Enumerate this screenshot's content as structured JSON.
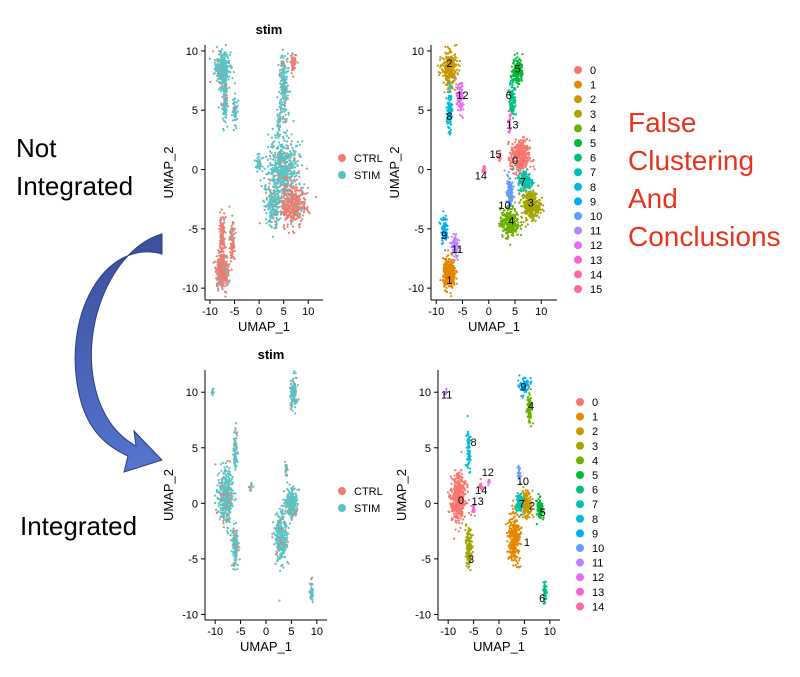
{
  "labels": {
    "not_integrated": [
      "Not",
      "Integrated"
    ],
    "integrated": "Integrated",
    "false_clustering": [
      "False",
      "Clustering",
      "And",
      "Conclusions"
    ]
  },
  "colors": {
    "CTRL": "#f07b71",
    "STIM": "#56c4c5",
    "label_red": "#e8341c",
    "arrow_start": "#3a4f9c",
    "arrow_end": "#5575cf",
    "clusters": [
      "#f8766d",
      "#e58700",
      "#c99800",
      "#a3a500",
      "#6bb100",
      "#00ba38",
      "#00bf7d",
      "#00c0af",
      "#00bcd8",
      "#00b0f6",
      "#619cff",
      "#b983ff",
      "#e76bf3",
      "#fd61d1",
      "#ff67a4",
      "#ff6c91"
    ]
  },
  "icons": {
    "arrow": "curved-arrow-icon"
  },
  "chart_data": [
    {
      "type": "scatter",
      "title": "stim",
      "xlabel": "UMAP_1",
      "ylabel": "UMAP_2",
      "xlim": [
        -11,
        13
      ],
      "ylim": [
        -11,
        10.5
      ],
      "xticks": [
        -10,
        -5,
        0,
        5,
        10
      ],
      "yticks": [
        -10,
        -5,
        0,
        5,
        10
      ],
      "color_by": "group",
      "legend": {
        "position": "right",
        "entries": [
          "CTRL",
          "STIM"
        ]
      },
      "labels_on_plot": [],
      "clusters": [
        {
          "group": "STIM",
          "cx": -7.5,
          "cy": 8.5,
          "sx": 1.2,
          "sy": 1.2,
          "n": 300
        },
        {
          "group": "STIM",
          "cx": -7,
          "cy": 6,
          "sx": 0.5,
          "sy": 1.5,
          "n": 120
        },
        {
          "group": "STIM",
          "cx": -5,
          "cy": 5,
          "sx": 0.5,
          "sy": 1.2,
          "n": 60
        },
        {
          "group": "STIM",
          "cx": 5,
          "cy": 7,
          "sx": 0.8,
          "sy": 2.5,
          "n": 200
        },
        {
          "group": "CTRL",
          "cx": 7,
          "cy": 9,
          "sx": 0.6,
          "sy": 0.6,
          "n": 50
        },
        {
          "group": "STIM",
          "cx": 4,
          "cy": 4,
          "sx": 0.3,
          "sy": 1,
          "n": 40
        },
        {
          "group": "STIM",
          "cx": 5,
          "cy": 0,
          "sx": 2.5,
          "sy": 2,
          "n": 500
        },
        {
          "group": "CTRL",
          "cx": 7,
          "cy": -3,
          "sx": 2,
          "sy": 1.4,
          "n": 400
        },
        {
          "group": "STIM",
          "cx": 3,
          "cy": -3,
          "sx": 1.4,
          "sy": 1.5,
          "n": 220
        },
        {
          "group": "CTRL",
          "cx": -7.5,
          "cy": -8.5,
          "sx": 1,
          "sy": 1.2,
          "n": 380
        },
        {
          "group": "CTRL",
          "cx": -7.5,
          "cy": -5.5,
          "sx": 0.5,
          "sy": 1.3,
          "n": 120
        },
        {
          "group": "CTRL",
          "cx": -5.5,
          "cy": -6,
          "sx": 0.4,
          "sy": 1.5,
          "n": 80
        },
        {
          "group": "STIM",
          "cx": 0,
          "cy": 0.5,
          "sx": 0.6,
          "sy": 0.6,
          "n": 40
        }
      ]
    },
    {
      "type": "scatter",
      "title": "",
      "xlabel": "UMAP_1",
      "ylabel": "UMAP_2",
      "xlim": [
        -11,
        13
      ],
      "ylim": [
        -11,
        10.5
      ],
      "xticks": [
        -10,
        -5,
        0,
        5,
        10
      ],
      "yticks": [
        -10,
        -5,
        0,
        5,
        10
      ],
      "color_by": "cluster",
      "legend": {
        "position": "right",
        "entries": [
          "0",
          "1",
          "2",
          "3",
          "4",
          "5",
          "6",
          "7",
          "8",
          "9",
          "10",
          "11",
          "12",
          "13",
          "14",
          "15"
        ]
      },
      "labels_on_plot": [
        {
          "label": "2",
          "x": -7.5,
          "y": 9
        },
        {
          "label": "12",
          "x": -5,
          "y": 6.3
        },
        {
          "label": "8",
          "x": -7.5,
          "y": 4.5
        },
        {
          "label": "5",
          "x": 5.5,
          "y": 8.5
        },
        {
          "label": "6",
          "x": 3.8,
          "y": 6.3
        },
        {
          "label": "13",
          "x": 4.5,
          "y": 3.8
        },
        {
          "label": "15",
          "x": 1.3,
          "y": 1.3
        },
        {
          "label": "14",
          "x": -1.5,
          "y": -0.5
        },
        {
          "label": "0",
          "x": 5,
          "y": 0.8
        },
        {
          "label": "7",
          "x": 6.5,
          "y": -1
        },
        {
          "label": "10",
          "x": 3,
          "y": -3
        },
        {
          "label": "3",
          "x": 8,
          "y": -2.8
        },
        {
          "label": "4",
          "x": 4.3,
          "y": -4.3
        },
        {
          "label": "9",
          "x": -8.5,
          "y": -5.5
        },
        {
          "label": "11",
          "x": -6,
          "y": -6.7
        },
        {
          "label": "1",
          "x": -7.5,
          "y": -9.3
        }
      ],
      "clusters": [
        {
          "group": "2",
          "cx": -7.5,
          "cy": 8.5,
          "sx": 1.2,
          "sy": 1.2,
          "n": 300
        },
        {
          "group": "12",
          "cx": -5.5,
          "cy": 6,
          "sx": 0.6,
          "sy": 1.2,
          "n": 80
        },
        {
          "group": "8",
          "cx": -7.5,
          "cy": 5,
          "sx": 0.4,
          "sy": 1.5,
          "n": 100
        },
        {
          "group": "5",
          "cx": 5.5,
          "cy": 8.3,
          "sx": 0.8,
          "sy": 1,
          "n": 150
        },
        {
          "group": "6",
          "cx": 4.5,
          "cy": 6,
          "sx": 0.5,
          "sy": 1.3,
          "n": 100
        },
        {
          "group": "13",
          "cx": 4,
          "cy": 4,
          "sx": 0.2,
          "sy": 0.8,
          "n": 30
        },
        {
          "group": "15",
          "cx": 2,
          "cy": 1,
          "sx": 0.3,
          "sy": 0.3,
          "n": 15
        },
        {
          "group": "14",
          "cx": -1,
          "cy": 0,
          "sx": 0.3,
          "sy": 0.3,
          "n": 15
        },
        {
          "group": "0",
          "cx": 6,
          "cy": 1,
          "sx": 1.5,
          "sy": 1.2,
          "n": 350
        },
        {
          "group": "7",
          "cx": 7,
          "cy": -1,
          "sx": 1.2,
          "sy": 0.8,
          "n": 180
        },
        {
          "group": "3",
          "cx": 8,
          "cy": -3,
          "sx": 1.5,
          "sy": 1,
          "n": 280
        },
        {
          "group": "10",
          "cx": 4,
          "cy": -2,
          "sx": 0.5,
          "sy": 1.3,
          "n": 120
        },
        {
          "group": "4",
          "cx": 4,
          "cy": -4.5,
          "sx": 1.5,
          "sy": 1,
          "n": 250
        },
        {
          "group": "9",
          "cx": -8.5,
          "cy": -5,
          "sx": 0.5,
          "sy": 1,
          "n": 80
        },
        {
          "group": "11",
          "cx": -6.5,
          "cy": -6.5,
          "sx": 0.6,
          "sy": 1,
          "n": 80
        },
        {
          "group": "1",
          "cx": -7.5,
          "cy": -8.8,
          "sx": 1,
          "sy": 1,
          "n": 320
        }
      ]
    },
    {
      "type": "scatter",
      "title": "stim",
      "xlabel": "UMAP_1",
      "ylabel": "UMAP_2",
      "xlim": [
        -12,
        12
      ],
      "ylim": [
        -10.5,
        12
      ],
      "xticks": [
        -10,
        -5,
        0,
        5,
        10
      ],
      "yticks": [
        -10,
        -5,
        0,
        5,
        10
      ],
      "color_by": "group",
      "legend": {
        "position": "right",
        "entries": [
          "CTRL",
          "STIM"
        ]
      },
      "labels_on_plot": [],
      "clusters": [
        {
          "group": "STIM",
          "cx": -8,
          "cy": 0.5,
          "sx": 1.2,
          "sy": 2,
          "n": 380
        },
        {
          "group": "STIM",
          "cx": -6,
          "cy": -4,
          "sx": 0.6,
          "sy": 1.5,
          "n": 130
        },
        {
          "group": "STIM",
          "cx": -6,
          "cy": 5,
          "sx": 0.3,
          "sy": 1.5,
          "n": 70
        },
        {
          "group": "STIM",
          "cx": 3,
          "cy": -3,
          "sx": 1,
          "sy": 2,
          "n": 280
        },
        {
          "group": "STIM",
          "cx": 5,
          "cy": 0,
          "sx": 1,
          "sy": 1,
          "n": 220
        },
        {
          "group": "STIM",
          "cx": 5.5,
          "cy": 10,
          "sx": 0.6,
          "sy": 1.2,
          "n": 120
        },
        {
          "group": "STIM",
          "cx": 9,
          "cy": -8,
          "sx": 0.3,
          "sy": 0.8,
          "n": 50
        },
        {
          "group": "STIM",
          "cx": -10.5,
          "cy": 10,
          "sx": 0.2,
          "sy": 0.3,
          "n": 10
        },
        {
          "group": "STIM",
          "cx": 4,
          "cy": 3,
          "sx": 0.2,
          "sy": 0.5,
          "n": 20
        },
        {
          "group": "STIM",
          "cx": -3,
          "cy": 1.5,
          "sx": 0.3,
          "sy": 0.3,
          "n": 15
        }
      ]
    },
    {
      "type": "scatter",
      "title": "",
      "xlabel": "UMAP_1",
      "ylabel": "UMAP_2",
      "xlim": [
        -12,
        12
      ],
      "ylim": [
        -10.5,
        12
      ],
      "xticks": [
        -10,
        -5,
        0,
        5,
        10
      ],
      "yticks": [
        -10,
        -5,
        0,
        5,
        10
      ],
      "color_by": "cluster",
      "legend": {
        "position": "right",
        "entries": [
          "0",
          "1",
          "2",
          "3",
          "4",
          "5",
          "6",
          "7",
          "8",
          "9",
          "10",
          "11",
          "12",
          "13",
          "14"
        ]
      },
      "labels_on_plot": [
        {
          "label": "11",
          "x": -10.3,
          "y": 9.8
        },
        {
          "label": "9",
          "x": 4.8,
          "y": 10.5
        },
        {
          "label": "4",
          "x": 6.3,
          "y": 8.8
        },
        {
          "label": "8",
          "x": -5,
          "y": 5.5
        },
        {
          "label": "12",
          "x": -2.2,
          "y": 2.8
        },
        {
          "label": "14",
          "x": -3.5,
          "y": 1.2
        },
        {
          "label": "10",
          "x": 4.7,
          "y": 2
        },
        {
          "label": "0",
          "x": -7.5,
          "y": 0.3
        },
        {
          "label": "13",
          "x": -4.2,
          "y": 0.2
        },
        {
          "label": "7",
          "x": 4.5,
          "y": 0
        },
        {
          "label": "2",
          "x": 6.5,
          "y": -0.2
        },
        {
          "label": "5",
          "x": 8.6,
          "y": -0.8
        },
        {
          "label": "1",
          "x": 5.5,
          "y": -3.5
        },
        {
          "label": "3",
          "x": -5.5,
          "y": -5
        },
        {
          "label": "6",
          "x": 8.5,
          "y": -8.5
        }
      ],
      "clusters": [
        {
          "group": "0",
          "cx": -8,
          "cy": 0.5,
          "sx": 1.2,
          "sy": 1.8,
          "n": 380
        },
        {
          "group": "3",
          "cx": -6,
          "cy": -4,
          "sx": 0.6,
          "sy": 1.5,
          "n": 130
        },
        {
          "group": "8",
          "cx": -6,
          "cy": 5,
          "sx": 0.3,
          "sy": 1.5,
          "n": 70
        },
        {
          "group": "13",
          "cx": -5,
          "cy": -0.5,
          "sx": 0.3,
          "sy": 0.4,
          "n": 20
        },
        {
          "group": "14",
          "cx": -3.5,
          "cy": 1.5,
          "sx": 0.3,
          "sy": 0.3,
          "n": 15
        },
        {
          "group": "12",
          "cx": -2,
          "cy": 2,
          "sx": 0.2,
          "sy": 0.3,
          "n": 10
        },
        {
          "group": "1",
          "cx": 3,
          "cy": -3,
          "sx": 1,
          "sy": 2,
          "n": 280
        },
        {
          "group": "2",
          "cx": 5.5,
          "cy": 0,
          "sx": 0.8,
          "sy": 1,
          "n": 150
        },
        {
          "group": "7",
          "cx": 4,
          "cy": 0,
          "sx": 0.5,
          "sy": 0.8,
          "n": 90
        },
        {
          "group": "5",
          "cx": 8,
          "cy": -0.5,
          "sx": 0.5,
          "sy": 0.8,
          "n": 80
        },
        {
          "group": "10",
          "cx": 4,
          "cy": 2.5,
          "sx": 0.2,
          "sy": 0.6,
          "n": 25
        },
        {
          "group": "9",
          "cx": 5,
          "cy": 10.5,
          "sx": 0.8,
          "sy": 0.6,
          "n": 80
        },
        {
          "group": "4",
          "cx": 6,
          "cy": 8.5,
          "sx": 0.4,
          "sy": 1.2,
          "n": 70
        },
        {
          "group": "6",
          "cx": 9,
          "cy": -8,
          "sx": 0.3,
          "sy": 0.8,
          "n": 50
        },
        {
          "group": "11",
          "cx": -10.5,
          "cy": 10,
          "sx": 0.2,
          "sy": 0.3,
          "n": 10
        }
      ]
    }
  ]
}
